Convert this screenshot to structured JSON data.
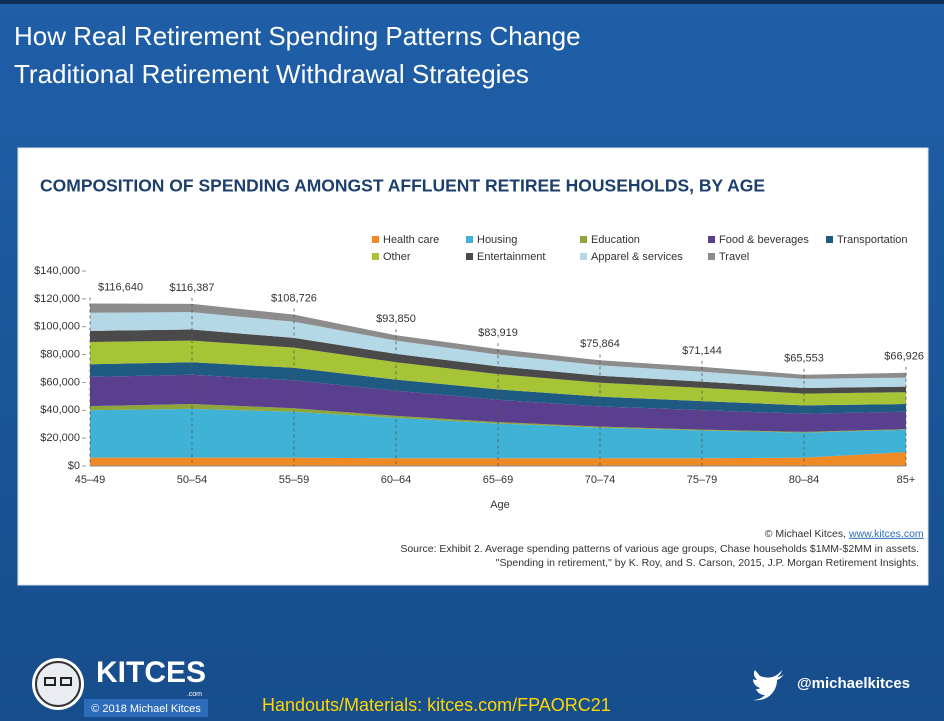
{
  "slide": {
    "title": [
      "How Real Retirement Spending Patterns Change",
      "Traditional Retirement Withdrawal Strategies"
    ],
    "logo_text": "KITCES",
    "logo_suffix": ".com",
    "copyright": "© 2018 Michael Kitces",
    "handouts": "Handouts/Materials: kitces.com/FPAORC21",
    "twitter": "@michaelkitces"
  },
  "chart_data": {
    "type": "stacked_area",
    "title": "COMPOSITION OF SPENDING AMONGST AFFLUENT RETIREE HOUSEHOLDS, BY AGE",
    "xlabel": "Age",
    "categories": [
      "45–49",
      "50–54",
      "55–59",
      "60–64",
      "65–69",
      "70–74",
      "75–79",
      "80–84",
      "85+"
    ],
    "series": [
      {
        "name": "Health care",
        "color": "#f08a24",
        "values": [
          6000,
          6000,
          6000,
          5500,
          5500,
          5500,
          5500,
          6000,
          10000
        ]
      },
      {
        "name": "Housing",
        "color": "#3fb2d6",
        "values": [
          34000,
          35000,
          33000,
          29000,
          25000,
          22000,
          20000,
          18000,
          16000
        ]
      },
      {
        "name": "Education",
        "color": "#8fa63a",
        "values": [
          3000,
          3500,
          2500,
          1500,
          1000,
          800,
          600,
          500,
          500
        ]
      },
      {
        "name": "Food & beverages",
        "color": "#5b3f8f",
        "values": [
          21000,
          21000,
          20000,
          18000,
          16000,
          14500,
          14000,
          13000,
          12500
        ]
      },
      {
        "name": "Transportation",
        "color": "#1f5a82",
        "values": [
          9000,
          9000,
          9000,
          8000,
          7500,
          7000,
          6500,
          6000,
          5500
        ]
      },
      {
        "name": "Other",
        "color": "#a7c436",
        "values": [
          16000,
          15500,
          14500,
          12500,
          11000,
          10000,
          9500,
          8500,
          8500
        ]
      },
      {
        "name": "Entertainment",
        "color": "#4a4a4a",
        "values": [
          8000,
          8000,
          7000,
          6000,
          5500,
          5000,
          4500,
          4000,
          4000
        ]
      },
      {
        "name": "Apparel & services",
        "color": "#b5d8e6",
        "values": [
          13000,
          12500,
          11500,
          9500,
          8500,
          7500,
          7000,
          6500,
          6500
        ]
      },
      {
        "name": "Travel",
        "color": "#8c8c8c",
        "values": [
          6640,
          5887,
          5226,
          3850,
          3919,
          3564,
          3544,
          3053,
          3426
        ]
      }
    ],
    "totals": [
      116640,
      116387,
      108726,
      93850,
      83919,
      75864,
      71144,
      65553,
      66926
    ],
    "total_labels": [
      "$116,640",
      "$116,387",
      "$108,726",
      "$93,850",
      "$83,919",
      "$75,864",
      "$71,144",
      "$65,553",
      "$66,926"
    ],
    "ylim": [
      0,
      140000
    ],
    "yticks": [
      {
        "value": 0,
        "label": "$0"
      },
      {
        "value": 20000,
        "label": "$20,000"
      },
      {
        "value": 40000,
        "label": "$40,000"
      },
      {
        "value": 60000,
        "label": "$60,000"
      },
      {
        "value": 80000,
        "label": "$80,000"
      },
      {
        "value": 100000,
        "label": "$100,000"
      },
      {
        "value": 120000,
        "label": "$120,000"
      },
      {
        "value": 140000,
        "label": "$140,000"
      }
    ],
    "credit": "© Michael Kitces,",
    "credit_link": "www.kitces.com",
    "source": [
      "Source: Exhibit 2. Average spending patterns of various age groups, Chase households $1MM-$2MM in assets.",
      "\"Spending in retirement,\" by K. Roy, and S. Carson, 2015, J.P. Morgan Retirement Insights."
    ]
  }
}
